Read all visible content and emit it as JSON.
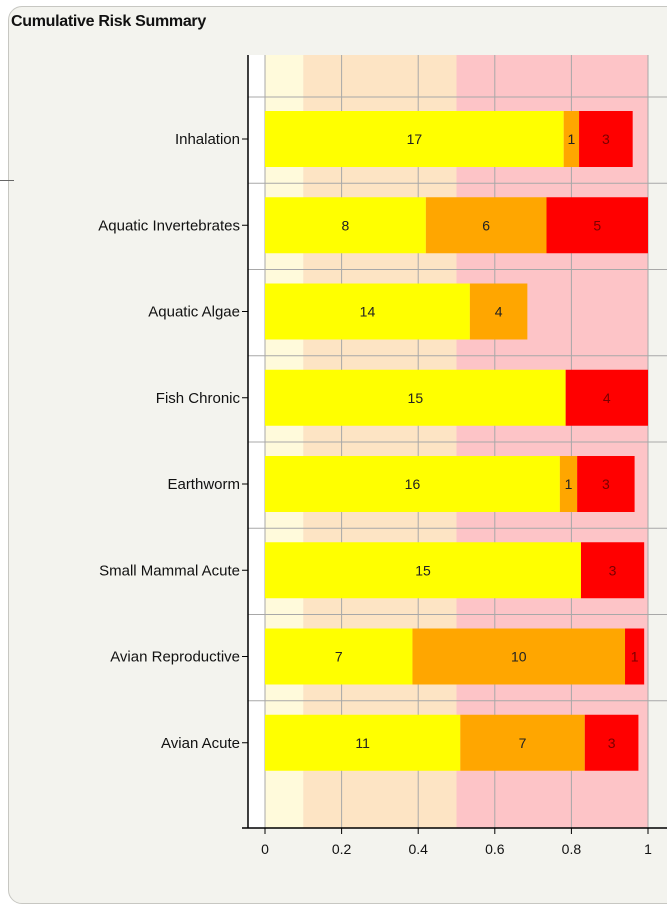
{
  "panel": {
    "title": "Cumulative Risk Summary"
  },
  "colors": {
    "band_low": "#fffadb",
    "band_mid": "#fde4c4",
    "band_high": "#fdc4c7",
    "seg_yellow": "#ffff00",
    "seg_orange": "#ffa600",
    "seg_red": "#ff0000",
    "gridline": "#a8a8a8",
    "axis": "#000000"
  },
  "chart_data": {
    "type": "bar",
    "orientation": "horizontal",
    "stacked": true,
    "categories": [
      "Inhalation",
      "Aquatic Invertebrates",
      "Aquatic Algae",
      "Fish Chronic",
      "Earthworm",
      "Small Mammal Acute",
      "Avian Reproductive",
      "Avian Acute"
    ],
    "series": [
      {
        "color": "#ffff00",
        "values": [
          0.78,
          0.42,
          0.535,
          0.785,
          0.77,
          0.825,
          0.385,
          0.51
        ],
        "labels": [
          "17",
          "8",
          "14",
          "15",
          "16",
          "15",
          "7",
          "11"
        ]
      },
      {
        "color": "#ffa600",
        "values": [
          0.04,
          0.315,
          0.15,
          0.0,
          0.045,
          0.0,
          0.555,
          0.325
        ],
        "labels": [
          "1",
          "6",
          "4",
          "",
          "1",
          "",
          "10",
          "7"
        ]
      },
      {
        "color": "#ff0000",
        "values": [
          0.14,
          0.265,
          0.0,
          0.215,
          0.15,
          0.165,
          0.05,
          0.14
        ],
        "labels": [
          "3",
          "5",
          "",
          "4",
          "3",
          "3",
          "1",
          "3"
        ]
      }
    ],
    "background_bands": [
      {
        "from": 0.0,
        "to": 0.1,
        "color": "#fffadb"
      },
      {
        "from": 0.1,
        "to": 0.5,
        "color": "#fde4c4"
      },
      {
        "from": 0.5,
        "to": 1.0,
        "color": "#fdc4c7"
      }
    ],
    "xlim": [
      0,
      1
    ],
    "xticks": [
      "0",
      "0.2",
      "0.4",
      "0.6",
      "0.8",
      "1"
    ],
    "grid": true,
    "xlabel": "",
    "ylabel": ""
  }
}
